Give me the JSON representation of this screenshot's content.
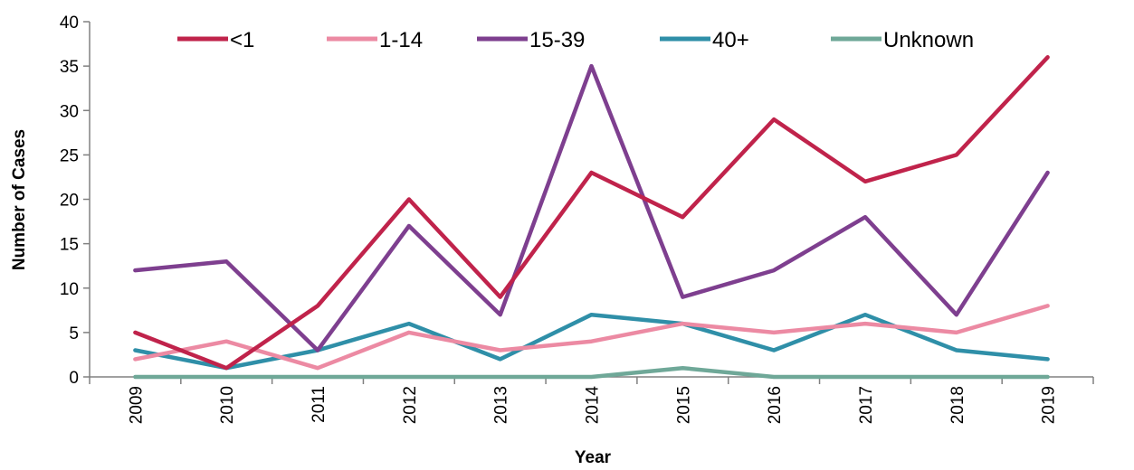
{
  "chart_data": {
    "type": "line",
    "title": "",
    "xlabel": "Year",
    "ylabel": "Number of Cases",
    "x": [
      "2009",
      "2010",
      "2011",
      "2012",
      "2013",
      "2014",
      "2015",
      "2016",
      "2017",
      "2018",
      "2019"
    ],
    "yticks": [
      "0",
      "5",
      "10",
      "15",
      "20",
      "25",
      "30",
      "35",
      "40"
    ],
    "ylim": [
      0,
      40
    ],
    "grid": false,
    "legend_position": "top",
    "series": [
      {
        "name": "<1",
        "color": "#c0234b",
        "values": [
          5,
          1,
          8,
          20,
          9,
          23,
          18,
          29,
          22,
          25,
          36
        ]
      },
      {
        "name": "1-14",
        "color": "#ec8aa3",
        "values": [
          2,
          4,
          1,
          5,
          3,
          4,
          6,
          5,
          6,
          5,
          8
        ]
      },
      {
        "name": "15-39",
        "color": "#7e3f8f",
        "values": [
          12,
          13,
          3,
          17,
          7,
          35,
          9,
          12,
          18,
          7,
          23
        ]
      },
      {
        "name": "40+",
        "color": "#2f8fa8",
        "values": [
          3,
          1,
          3,
          6,
          2,
          7,
          6,
          3,
          7,
          3,
          2
        ]
      },
      {
        "name": "Unknown",
        "color": "#6fa898",
        "values": [
          0,
          0,
          0,
          0,
          0,
          0,
          1,
          0,
          0,
          0,
          0
        ]
      }
    ]
  }
}
